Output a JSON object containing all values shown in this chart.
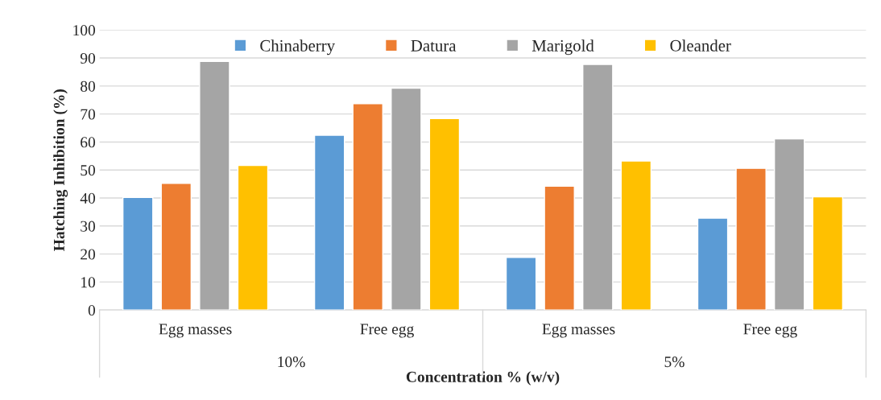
{
  "chart_data": {
    "type": "bar",
    "ylabel": "Hatching Inhibition (%)",
    "xlabel": "Concentration % (w/v)",
    "categories": [
      "Egg masses",
      "Free egg",
      "Egg masses",
      "Free egg"
    ],
    "annotations": [
      "10%",
      "5%"
    ],
    "series": [
      {
        "name": "Chinaberry",
        "color": "#5b9bd5",
        "values": [
          40.2,
          62.4,
          18.8,
          32.8
        ]
      },
      {
        "name": "Datura",
        "color": "#ed7d31",
        "values": [
          45.2,
          73.7,
          44.2,
          50.6
        ]
      },
      {
        "name": "Marigold",
        "color": "#a5a5a5",
        "values": [
          88.8,
          79.2,
          87.7,
          61.1
        ]
      },
      {
        "name": "Oleander",
        "color": "#ffc000",
        "values": [
          51.6,
          68.4,
          53.2,
          40.4
        ]
      }
    ],
    "ylim": [
      0,
      100
    ],
    "yticks": [
      0,
      10,
      20,
      30,
      40,
      50,
      60,
      70,
      80,
      90,
      100
    ],
    "grid": "y",
    "legend": "top"
  }
}
